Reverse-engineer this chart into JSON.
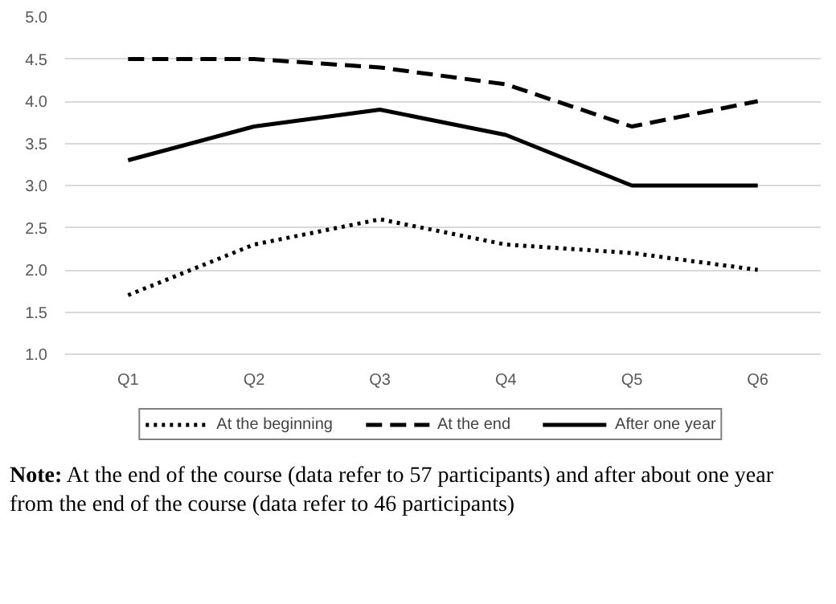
{
  "chart_data": {
    "type": "line",
    "categories": [
      "Q1",
      "Q2",
      "Q3",
      "Q4",
      "Q5",
      "Q6"
    ],
    "series": [
      {
        "name": "At the beginning",
        "color": "#000000",
        "line_style": "dotted",
        "values": [
          1.7,
          2.3,
          2.6,
          2.3,
          2.2,
          2.0
        ]
      },
      {
        "name": "At the end",
        "color": "#000000",
        "line_style": "dashed",
        "values": [
          4.5,
          4.5,
          4.4,
          4.2,
          3.7,
          4.0
        ]
      },
      {
        "name": "After one year",
        "color": "#000000",
        "line_style": "solid",
        "values": [
          3.3,
          3.7,
          3.9,
          3.6,
          3.0,
          3.0
        ]
      }
    ],
    "ylim": [
      1.0,
      5.0
    ],
    "yticks": [
      {
        "value": 1.0,
        "label": "1.0"
      },
      {
        "value": 1.5,
        "label": "1.5"
      },
      {
        "value": 2.0,
        "label": "2.0"
      },
      {
        "value": 2.5,
        "label": "2.5"
      },
      {
        "value": 3.0,
        "label": "3.0"
      },
      {
        "value": 3.5,
        "label": "3.5"
      },
      {
        "value": 4.0,
        "label": "4.0"
      },
      {
        "value": 4.5,
        "label": "4.5"
      },
      {
        "value": 5.0,
        "label": "5.0"
      }
    ],
    "grid": "y",
    "legend": "bottom",
    "marker": "none",
    "annotations": [
      "Note: At the end of the course (data refer to 57 participants) and after about one year from the end of the course (data refer to 46 participants)"
    ]
  }
}
